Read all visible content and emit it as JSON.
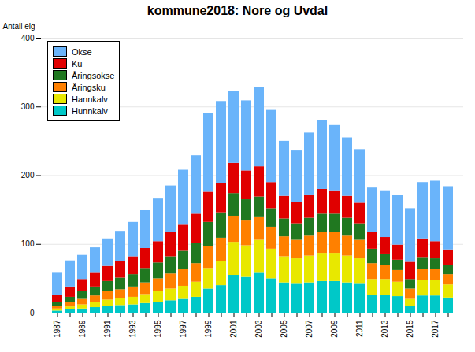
{
  "chart_data": {
    "type": "bar",
    "title": "kommune2018: Nore og Uvdal",
    "ylabel": "Antall elg",
    "stacked": true,
    "categories": [
      "1987",
      null,
      "1989",
      null,
      "1991",
      null,
      "1993",
      null,
      "1995",
      null,
      "1997",
      null,
      "1999",
      null,
      "2001",
      null,
      "2003",
      null,
      "2005",
      null,
      "2007",
      null,
      "2009",
      null,
      "2011",
      null,
      "2013",
      null,
      "2015",
      null,
      "2017",
      null
    ],
    "series": [
      {
        "name": "Hunnkalv",
        "color": "#00c8c8",
        "values": [
          3,
          5,
          6,
          8,
          10,
          11,
          12,
          14,
          16,
          18,
          20,
          23,
          35,
          40,
          55,
          52,
          58,
          50,
          44,
          42,
          44,
          46,
          46,
          44,
          42,
          26,
          26,
          24,
          10,
          25,
          25,
          22
        ]
      },
      {
        "name": "Hannkalv",
        "color": "#e8e800",
        "values": [
          3,
          4,
          6,
          7,
          9,
          10,
          11,
          13,
          15,
          17,
          19,
          22,
          30,
          35,
          48,
          46,
          48,
          43,
          38,
          37,
          39,
          41,
          41,
          39,
          37,
          23,
          23,
          21,
          10,
          22,
          22,
          19
        ]
      },
      {
        "name": "Åringsku",
        "color": "#ff8000",
        "values": [
          4,
          6,
          8,
          10,
          12,
          13,
          15,
          17,
          19,
          22,
          24,
          27,
          32,
          34,
          38,
          36,
          34,
          32,
          29,
          27,
          29,
          30,
          30,
          29,
          27,
          23,
          20,
          17,
          15,
          17,
          17,
          15
        ]
      },
      {
        "name": "Åringsokse",
        "color": "#207820",
        "values": [
          6,
          8,
          11,
          13,
          15,
          17,
          18,
          21,
          23,
          25,
          27,
          30,
          35,
          37,
          33,
          31,
          29,
          27,
          26,
          24,
          26,
          27,
          27,
          26,
          24,
          21,
          17,
          15,
          14,
          17,
          15,
          13
        ]
      },
      {
        "name": "Ku",
        "color": "#e00000",
        "values": [
          10,
          15,
          18,
          20,
          22,
          24,
          26,
          29,
          31,
          35,
          38,
          42,
          44,
          42,
          44,
          42,
          44,
          38,
          33,
          31,
          34,
          36,
          34,
          32,
          30,
          24,
          24,
          22,
          25,
          27,
          25,
          23
        ]
      },
      {
        "name": "Okse",
        "color": "#6ab4fa",
        "values": [
          32,
          38,
          35,
          37,
          40,
          44,
          50,
          55,
          62,
          68,
          80,
          85,
          115,
          120,
          105,
          102,
          115,
          105,
          80,
          75,
          90,
          100,
          95,
          85,
          78,
          65,
          68,
          72,
          78,
          82,
          88,
          92
        ]
      }
    ],
    "ylim": [
      0,
      400
    ],
    "yticks": [
      0,
      100,
      200,
      300,
      400
    ],
    "grid": true,
    "legend": "upper left"
  }
}
